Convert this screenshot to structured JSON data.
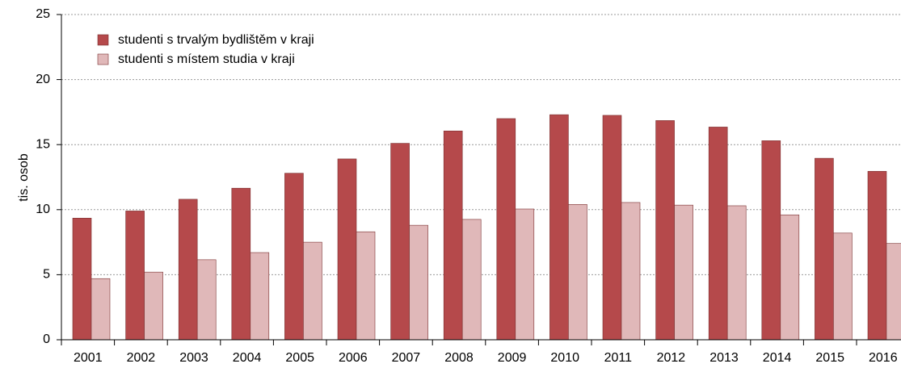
{
  "chart_data": {
    "type": "bar",
    "ylabel": "tis. osob",
    "categories": [
      "2001",
      "2002",
      "2003",
      "2004",
      "2005",
      "2006",
      "2007",
      "2008",
      "2009",
      "2010",
      "2011",
      "2012",
      "2013",
      "2014",
      "2015",
      "2016"
    ],
    "series": [
      {
        "name": "studenti s trvalým bydlištěm v kraji",
        "color": "#b5494b",
        "values": [
          9.35,
          9.9,
          10.8,
          11.65,
          12.8,
          13.9,
          15.1,
          16.05,
          17.0,
          17.3,
          17.25,
          16.85,
          16.35,
          15.3,
          13.95,
          12.95
        ]
      },
      {
        "name": "studenti s místem studia v kraji",
        "color": "#e0b8b9",
        "values": [
          4.7,
          5.2,
          6.15,
          6.7,
          7.5,
          8.3,
          8.8,
          9.25,
          10.05,
          10.4,
          10.55,
          10.35,
          10.3,
          9.6,
          8.2,
          7.4
        ]
      }
    ],
    "ylim": [
      0,
      25
    ],
    "yticks": [
      0,
      5,
      10,
      15,
      20,
      25
    ],
    "grid": true,
    "legend": "top-left"
  }
}
